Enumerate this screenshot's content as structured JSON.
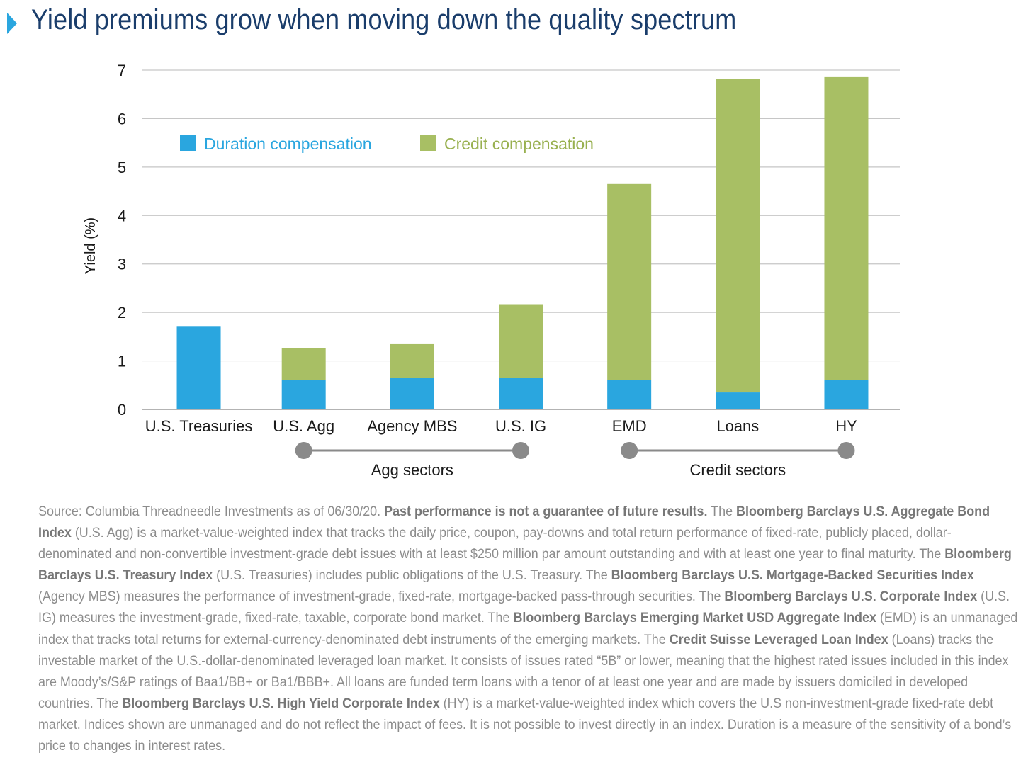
{
  "header": {
    "title": "Yield premiums grow when moving down the quality spectrum",
    "marker_color": "#2aa6df"
  },
  "chart_data": {
    "type": "bar",
    "stacked": true,
    "title": "Yield premiums grow when moving down the quality spectrum",
    "ylabel": "Yield (%)",
    "xlabel": "",
    "ylim": [
      0,
      7
    ],
    "yticks": [
      0,
      1,
      2,
      3,
      4,
      5,
      6,
      7
    ],
    "grid": true,
    "legend_position": "top-left",
    "categories": [
      "U.S. Treasuries",
      "U.S. Agg",
      "Agency MBS",
      "U.S. IG",
      "EMD",
      "Loans",
      "HY"
    ],
    "series": [
      {
        "name": "Duration compensation",
        "color": "#2aa6df",
        "values": [
          1.72,
          0.6,
          0.65,
          0.65,
          0.6,
          0.35,
          0.6
        ]
      },
      {
        "name": "Credit compensation",
        "color": "#a8bf64",
        "values": [
          0,
          0.66,
          0.71,
          1.52,
          4.05,
          6.47,
          6.27
        ]
      }
    ],
    "groups": [
      {
        "label": "Agg sectors",
        "from": "U.S. Agg",
        "to": "U.S. IG"
      },
      {
        "label": "Credit sectors",
        "from": "EMD",
        "to": "HY"
      }
    ]
  },
  "source_note": [
    {
      "t": "Source: Columbia Threadneedle Investments as of 06/30/20. "
    },
    {
      "t": "Past performance is not a guarantee of future results.",
      "b": true
    },
    {
      "t": " The "
    },
    {
      "t": "Bloomberg Barclays U.S. Aggregate Bond Index",
      "b": true
    },
    {
      "t": " (U.S. Agg) is a market-value-weighted index that tracks the daily price, coupon, pay-downs and total return performance of fixed-rate, publicly placed, dollar-denominated and non-convertible investment-grade debt issues with at least $250 million par amount outstanding and with at least one year to final maturity. The "
    },
    {
      "t": "Bloomberg Barclays U.S. Treasury Index",
      "b": true
    },
    {
      "t": " (U.S. Treasuries) includes public obligations of the U.S. Treasury. The "
    },
    {
      "t": "Bloomberg Barclays U.S. Mortgage-Backed Securities Index",
      "b": true
    },
    {
      "t": " (Agency MBS) measures the performance of investment-grade, fixed-rate, mortgage-backed pass-through securities. The "
    },
    {
      "t": "Bloomberg Barclays U.S. Corporate Index",
      "b": true
    },
    {
      "t": " (U.S. IG) measures the investment-grade, fixed-rate, taxable, corporate bond market. The "
    },
    {
      "t": "Bloomberg Barclays Emerging Market USD Aggregate Index",
      "b": true
    },
    {
      "t": " (EMD) is an unmanaged index that tracks total returns for external-currency-denominated debt instruments of the emerging markets. The "
    },
    {
      "t": "Credit Suisse Leveraged Loan Index",
      "b": true
    },
    {
      "t": " (Loans) tracks the investable market of the U.S.-dollar-denominated leveraged loan market. It consists of issues rated “5B” or lower, meaning that the highest rated issues included in this index are Moody’s/S&P ratings of Baa1/BB+ or Ba1/BBB+. All loans are funded term loans with a tenor of at least one year and are made by issuers domiciled in developed countries. The "
    },
    {
      "t": "Bloomberg Barclays U.S. High Yield Corporate Index",
      "b": true
    },
    {
      "t": " (HY) is a market-value-weighted index which covers the U.S non-investment-grade fixed-rate debt market. Indices shown are unmanaged and do not reflect the impact of fees. It is not possible to invest directly in an index. Duration is a measure of the sensitivity of a bond’s price to changes in interest rates."
    }
  ]
}
